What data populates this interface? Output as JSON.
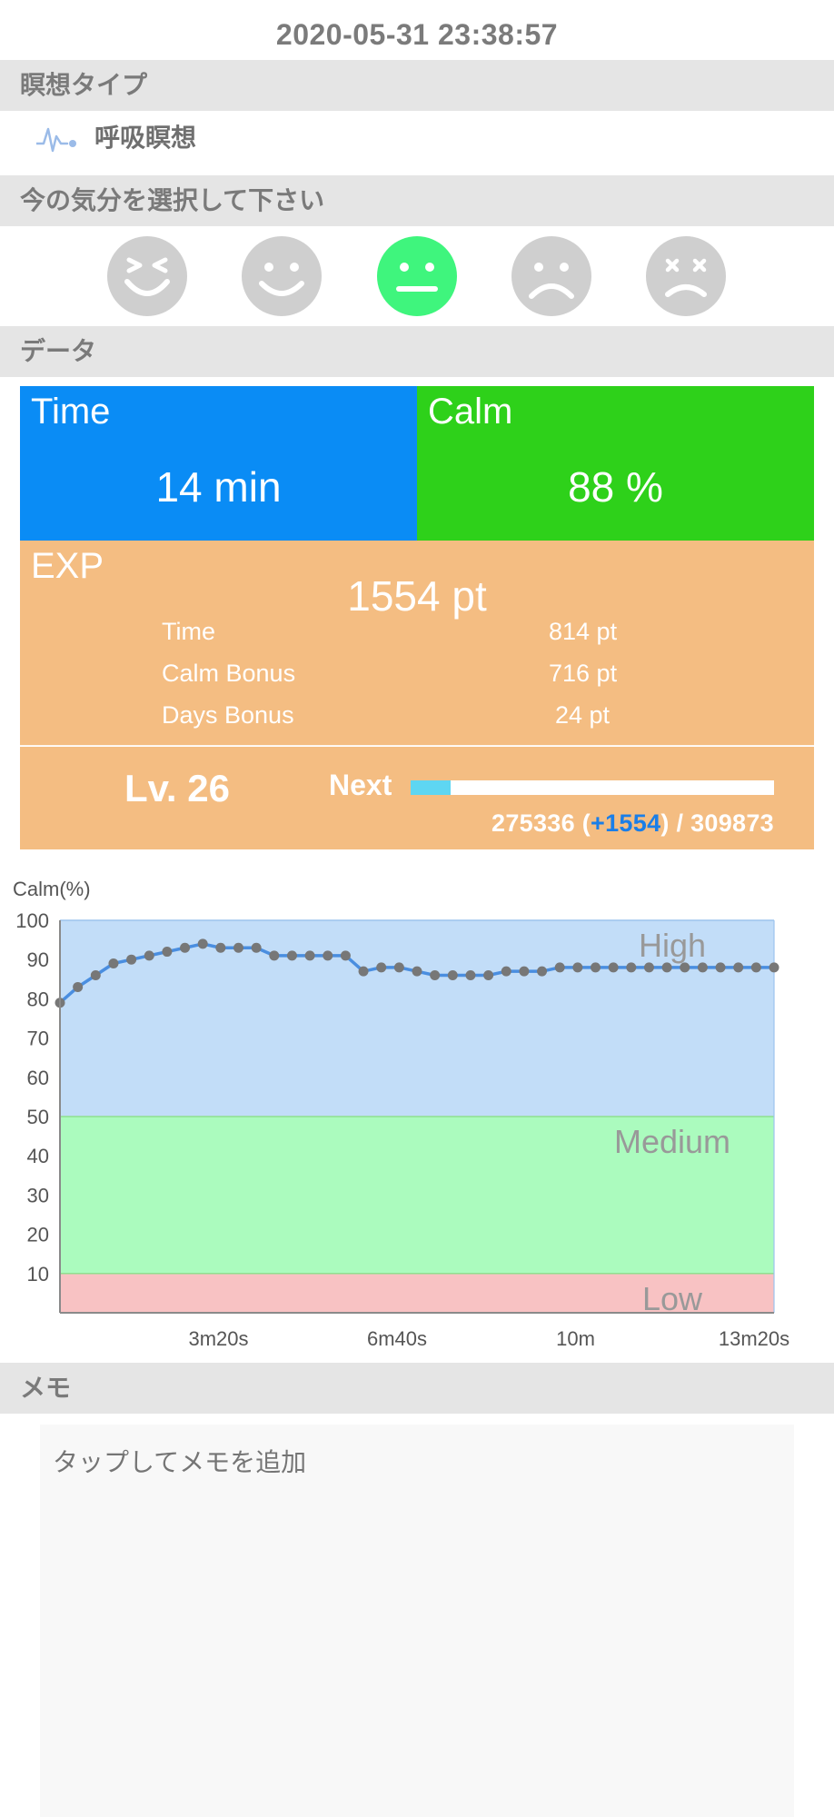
{
  "header": {
    "datetime": "2020-05-31 23:38:57"
  },
  "meditation_type": {
    "section_label": "瞑想タイプ",
    "value": "呼吸瞑想",
    "icon": "waveform-icon"
  },
  "mood": {
    "section_label": "今の気分を選択して下さい",
    "options": [
      {
        "name": "very-happy",
        "selected": false
      },
      {
        "name": "happy",
        "selected": false
      },
      {
        "name": "neutral",
        "selected": true
      },
      {
        "name": "sad",
        "selected": false
      },
      {
        "name": "very-sad",
        "selected": false
      }
    ],
    "colors": {
      "unselected": "#cfcfcf",
      "selected": "#3ff57d"
    }
  },
  "data": {
    "section_label": "データ",
    "time": {
      "title": "Time",
      "value": "14 min",
      "color": "#0a8cf5"
    },
    "calm": {
      "title": "Calm",
      "value": "88 %",
      "color": "#2ed11a"
    },
    "exp": {
      "title": "EXP",
      "total": "1554 pt",
      "color": "#f4bd82",
      "rows": [
        {
          "label": "Time",
          "value": "814 pt"
        },
        {
          "label": "Calm Bonus",
          "value": "716 pt"
        },
        {
          "label": "Days Bonus",
          "value": "24 pt"
        }
      ]
    },
    "level": {
      "label": "Lv. 26",
      "next_label": "Next",
      "progress_current": "275336",
      "progress_gain": "+1554",
      "progress_total": "309873",
      "progress_fraction": 0.11,
      "bar_color": "#5ed6f2",
      "gain_color": "#1a7ee8"
    }
  },
  "chart_data": {
    "type": "line",
    "ylabel": "Calm(%)",
    "ylim": [
      0,
      100
    ],
    "yticks": [
      10,
      20,
      30,
      40,
      50,
      60,
      70,
      80,
      90,
      100
    ],
    "xlim_seconds": [
      0,
      800
    ],
    "xticks": [
      {
        "s": 200,
        "label": "3m20s"
      },
      {
        "s": 400,
        "label": "6m40s"
      },
      {
        "s": 600,
        "label": "10m"
      },
      {
        "s": 800,
        "label": "13m20s"
      }
    ],
    "zones": [
      {
        "name": "High",
        "from": 50,
        "to": 100,
        "color": "#c2ddf8"
      },
      {
        "name": "Medium",
        "from": 10,
        "to": 50,
        "color": "#abfbbe"
      },
      {
        "name": "Low",
        "from": 0,
        "to": 10,
        "color": "#f8c2c3"
      }
    ],
    "series": [
      {
        "x": [
          0,
          20,
          40,
          60,
          80,
          100,
          120,
          140,
          160,
          180,
          200,
          220,
          240,
          260,
          280,
          300,
          320,
          340,
          360,
          380,
          400,
          420,
          440,
          460,
          480,
          500,
          520,
          540,
          560,
          580,
          600,
          620,
          640,
          660,
          680,
          700,
          720,
          740,
          760,
          780,
          800
        ],
        "values": [
          79,
          83,
          86,
          89,
          90,
          91,
          92,
          93,
          94,
          93,
          93,
          93,
          91,
          91,
          91,
          91,
          91,
          87,
          88,
          88,
          87,
          86,
          86,
          86,
          86,
          87,
          87,
          87,
          88,
          88,
          88,
          88,
          88,
          88,
          88,
          88,
          88,
          88,
          88,
          88,
          88
        ]
      }
    ],
    "line_color": "#4a8ee0",
    "point_color": "#777777"
  },
  "memo": {
    "section_label": "メモ",
    "placeholder": "タップしてメモを追加"
  }
}
